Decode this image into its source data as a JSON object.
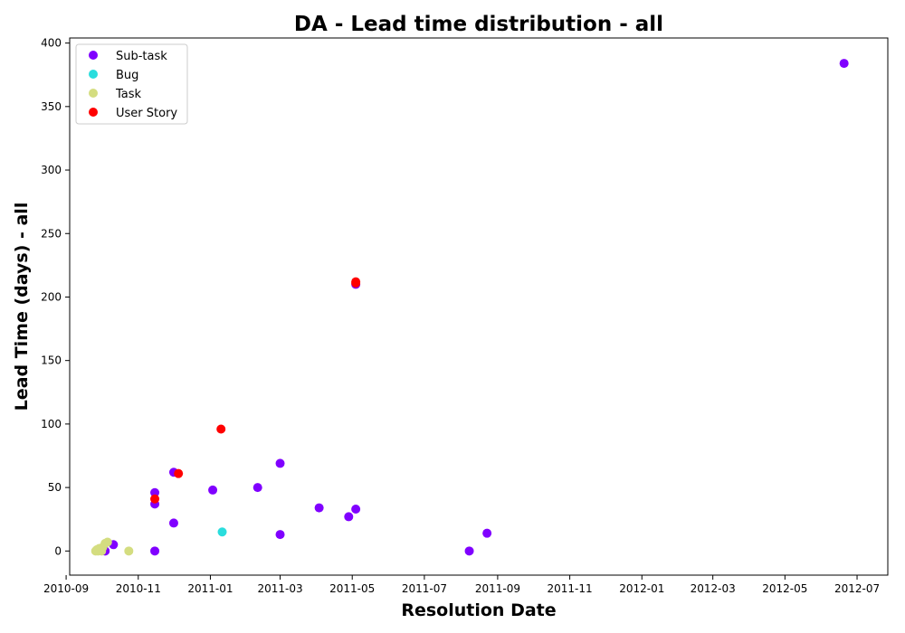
{
  "chart_data": {
    "type": "scatter",
    "title": "DA - Lead time distribution - all",
    "xlabel": "Resolution Date",
    "ylabel": "Lead Time (days) - all",
    "xlim": [
      "2010-09-04",
      "2012-07-27"
    ],
    "ylim": [
      -19,
      404
    ],
    "x_ticks": [
      "2010-09",
      "2010-11",
      "2011-01",
      "2011-03",
      "2011-05",
      "2011-07",
      "2011-09",
      "2011-11",
      "2012-01",
      "2012-03",
      "2012-05",
      "2012-07"
    ],
    "y_ticks": [
      0,
      50,
      100,
      150,
      200,
      250,
      300,
      350,
      400
    ],
    "grid": false,
    "legend_position": "top-left",
    "series": [
      {
        "name": "Sub-task",
        "color": "#8000ff",
        "points": [
          {
            "x": "2010-10-04",
            "y": 0
          },
          {
            "x": "2010-10-11",
            "y": 5
          },
          {
            "x": "2010-11-15",
            "y": 46
          },
          {
            "x": "2010-11-15",
            "y": 37
          },
          {
            "x": "2010-11-15",
            "y": 0
          },
          {
            "x": "2010-12-01",
            "y": 62
          },
          {
            "x": "2010-12-01",
            "y": 22
          },
          {
            "x": "2011-01-03",
            "y": 48
          },
          {
            "x": "2011-02-10",
            "y": 50
          },
          {
            "x": "2011-03-01",
            "y": 69
          },
          {
            "x": "2011-03-01",
            "y": 13
          },
          {
            "x": "2011-04-03",
            "y": 34
          },
          {
            "x": "2011-04-28",
            "y": 27
          },
          {
            "x": "2011-05-04",
            "y": 33
          },
          {
            "x": "2011-05-04",
            "y": 210
          },
          {
            "x": "2011-08-08",
            "y": 0
          },
          {
            "x": "2011-08-23",
            "y": 14
          },
          {
            "x": "2012-06-20",
            "y": 384
          }
        ]
      },
      {
        "name": "Bug",
        "color": "#2adddd",
        "points": [
          {
            "x": "2011-01-11",
            "y": 15
          }
        ]
      },
      {
        "name": "Task",
        "color": "#d4dd80",
        "points": [
          {
            "x": "2010-09-26",
            "y": 0
          },
          {
            "x": "2010-09-27",
            "y": 1
          },
          {
            "x": "2010-09-28",
            "y": 0
          },
          {
            "x": "2010-09-29",
            "y": 2
          },
          {
            "x": "2010-09-30",
            "y": 1
          },
          {
            "x": "2010-10-01",
            "y": 0
          },
          {
            "x": "2010-10-02",
            "y": 3
          },
          {
            "x": "2010-10-04",
            "y": 6
          },
          {
            "x": "2010-10-06",
            "y": 7
          },
          {
            "x": "2010-10-24",
            "y": 0
          }
        ]
      },
      {
        "name": "User Story",
        "color": "#ff0000",
        "points": [
          {
            "x": "2010-11-15",
            "y": 41
          },
          {
            "x": "2010-12-05",
            "y": 61
          },
          {
            "x": "2011-01-10",
            "y": 96
          },
          {
            "x": "2011-05-04",
            "y": 211
          },
          {
            "x": "2011-05-04",
            "y": 212
          }
        ]
      }
    ]
  }
}
